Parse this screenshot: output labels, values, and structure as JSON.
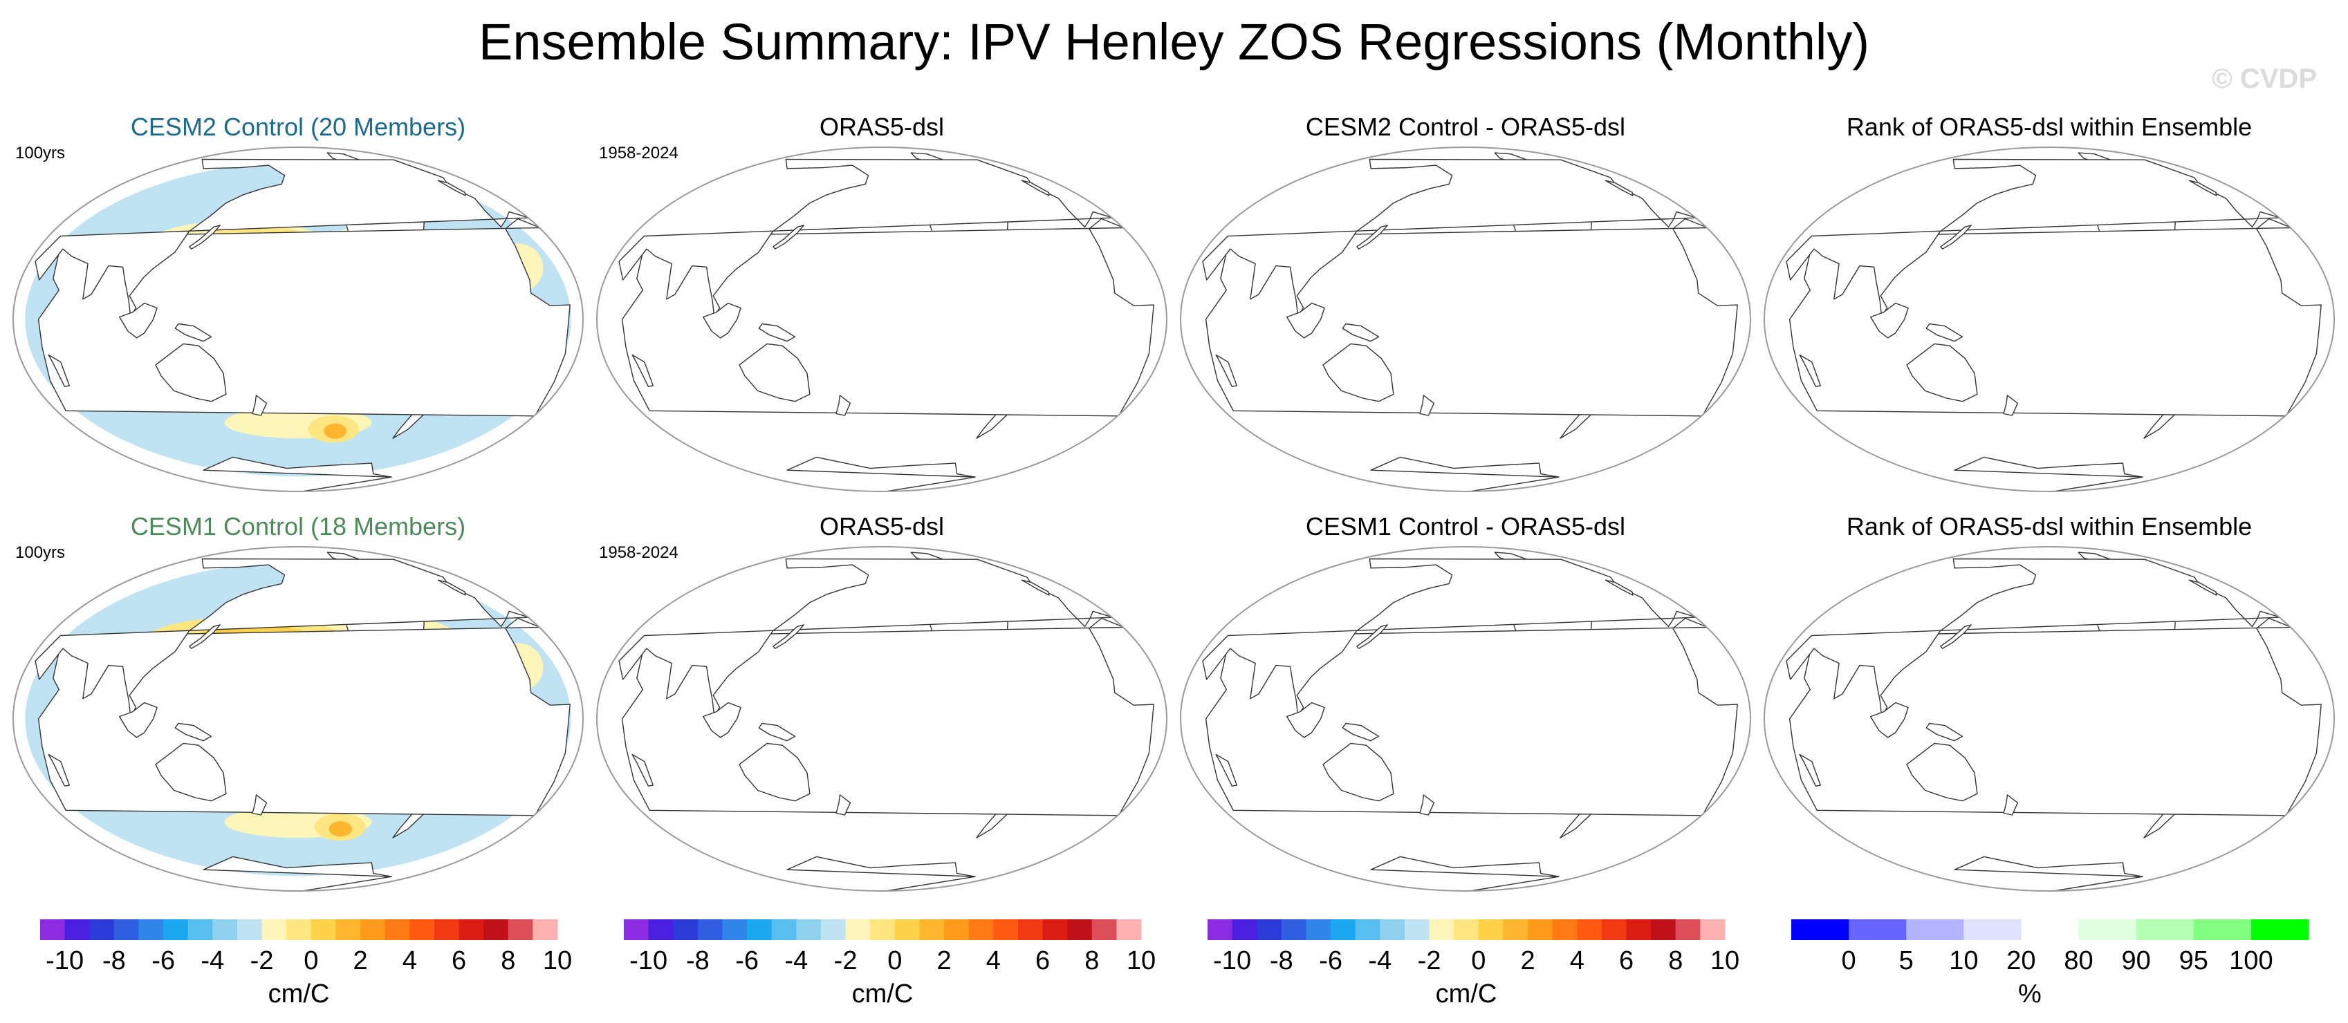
{
  "title": "Ensemble Summary: IPV Henley ZOS Regressions (Monthly)",
  "watermark": "© CVDP",
  "colors": {
    "cesm2_title": "#1a6b8e",
    "cesm1_title": "#4d8a5a",
    "map_outline": "#9a9a9a",
    "coast": "#333333",
    "land": "#ffffff"
  },
  "chart_data": [
    {
      "type": "map",
      "row": 1,
      "title": "CESM2 Control (20 Members)",
      "period": "100yrs",
      "filled": true,
      "units": "cm/C"
    },
    {
      "type": "map",
      "row": 1,
      "title": "ORAS5-dsl",
      "period": "1958-2024",
      "filled": false
    },
    {
      "type": "map",
      "row": 1,
      "title": "CESM2 Control - ORAS5-dsl",
      "period": "",
      "filled": false
    },
    {
      "type": "map",
      "row": 1,
      "title": "Rank of ORAS5-dsl within Ensemble",
      "period": "",
      "filled": false
    },
    {
      "type": "map",
      "row": 2,
      "title": "CESM1 Control (18 Members)",
      "period": "100yrs",
      "filled": true,
      "units": "cm/C"
    },
    {
      "type": "map",
      "row": 2,
      "title": "ORAS5-dsl",
      "period": "1958-2024",
      "filled": false
    },
    {
      "type": "map",
      "row": 2,
      "title": "CESM1 Control - ORAS5-dsl",
      "period": "",
      "filled": false
    },
    {
      "type": "map",
      "row": 2,
      "title": "Rank of ORAS5-dsl within Ensemble",
      "period": "",
      "filled": false
    }
  ],
  "colorbars": [
    {
      "name": "regression",
      "unit": "cm/C",
      "tick_labels": [
        "-10",
        "-8",
        "-6",
        "-4",
        "-2",
        "0",
        "2",
        "4",
        "6",
        "8",
        "10"
      ],
      "colors": [
        "#8b2be2",
        "#4b1fe0",
        "#2b3bd8",
        "#2f5fe0",
        "#2f86e8",
        "#1aa7f0",
        "#56bff0",
        "#8fd0ee",
        "#bfe3f2",
        "#fdf6b8",
        "#ffe680",
        "#ffd24a",
        "#ffb52e",
        "#ff9a1a",
        "#ff7a12",
        "#ff5a10",
        "#f23a12",
        "#da1c12",
        "#c0101a",
        "#dd4f58",
        "#ffb0b0"
      ]
    },
    {
      "name": "regression",
      "unit": "cm/C",
      "tick_labels": [
        "-10",
        "-8",
        "-6",
        "-4",
        "-2",
        "0",
        "2",
        "4",
        "6",
        "8",
        "10"
      ],
      "colors": [
        "#8b2be2",
        "#4b1fe0",
        "#2b3bd8",
        "#2f5fe0",
        "#2f86e8",
        "#1aa7f0",
        "#56bff0",
        "#8fd0ee",
        "#bfe3f2",
        "#fdf6b8",
        "#ffe680",
        "#ffd24a",
        "#ffb52e",
        "#ff9a1a",
        "#ff7a12",
        "#ff5a10",
        "#f23a12",
        "#da1c12",
        "#c0101a",
        "#dd4f58",
        "#ffb0b0"
      ]
    },
    {
      "name": "regression",
      "unit": "cm/C",
      "tick_labels": [
        "-10",
        "-8",
        "-6",
        "-4",
        "-2",
        "0",
        "2",
        "4",
        "6",
        "8",
        "10"
      ],
      "colors": [
        "#8b2be2",
        "#4b1fe0",
        "#2b3bd8",
        "#2f5fe0",
        "#2f86e8",
        "#1aa7f0",
        "#56bff0",
        "#8fd0ee",
        "#bfe3f2",
        "#fdf6b8",
        "#ffe680",
        "#ffd24a",
        "#ffb52e",
        "#ff9a1a",
        "#ff7a12",
        "#ff5a10",
        "#f23a12",
        "#da1c12",
        "#c0101a",
        "#dd4f58",
        "#ffb0b0"
      ]
    },
    {
      "name": "rank",
      "unit": "%",
      "tick_labels": [
        "0",
        "5",
        "10",
        "20",
        "80",
        "90",
        "95",
        "100"
      ],
      "colors": [
        "#0000ff",
        "#6666ff",
        "#b3b3ff",
        "#e0e0ff",
        "#ffffff",
        "#e0ffe0",
        "#b3ffb3",
        "#80ff80",
        "#00ff00"
      ]
    }
  ]
}
